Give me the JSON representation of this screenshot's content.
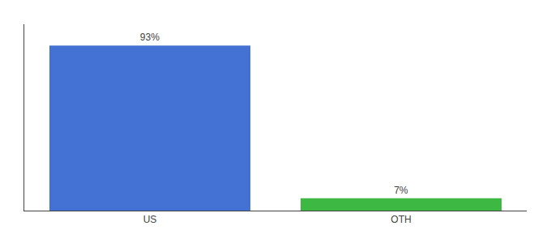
{
  "chart_data": {
    "type": "bar",
    "categories": [
      "US",
      "OTH"
    ],
    "values": [
      93,
      7
    ],
    "value_labels": [
      "93%",
      "7%"
    ],
    "colors": [
      "#4472d4",
      "#3cb843"
    ],
    "ylim": [
      0,
      105
    ],
    "grid": false,
    "tick_labels": "x"
  }
}
